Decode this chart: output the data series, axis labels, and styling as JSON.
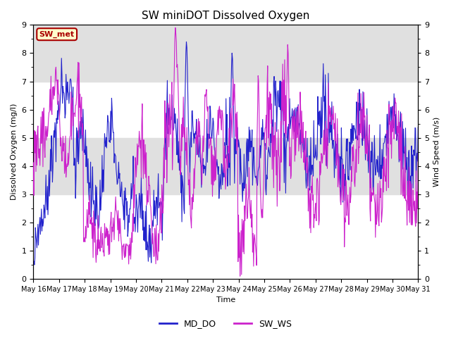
{
  "title": "SW miniDOT Dissolved Oxygen",
  "xlabel": "Time",
  "ylabel_left": "Dissolved Oxygen (mg/l)",
  "ylabel_right": "Wind Speed (m/s)",
  "ylim": [
    0.0,
    9.0
  ],
  "yticks": [
    0.0,
    1.0,
    2.0,
    3.0,
    4.0,
    5.0,
    6.0,
    7.0,
    8.0,
    9.0
  ],
  "xtick_labels": [
    "May 16",
    "May 17",
    "May 18",
    "May 19",
    "May 20",
    "May 21",
    "May 22",
    "May 23",
    "May 24",
    "May 25",
    "May 26",
    "May 27",
    "May 28",
    "May 29",
    "May 30",
    "May 31"
  ],
  "annotation_text": "SW_met",
  "annotation_bg": "#ffffcc",
  "annotation_border": "#aa0000",
  "annotation_text_color": "#aa0000",
  "line_md_do_color": "#2222cc",
  "line_sw_ws_color": "#cc22cc",
  "legend_md_do": "MD_DO",
  "legend_sw_ws": "SW_WS",
  "background_color": "#ffffff",
  "band_color": "#e0e0e0",
  "band_ranges": [
    [
      3.0,
      5.0
    ],
    [
      7.0,
      9.0
    ]
  ],
  "title_fontsize": 11,
  "figsize": [
    6.4,
    4.8
  ],
  "dpi": 100
}
